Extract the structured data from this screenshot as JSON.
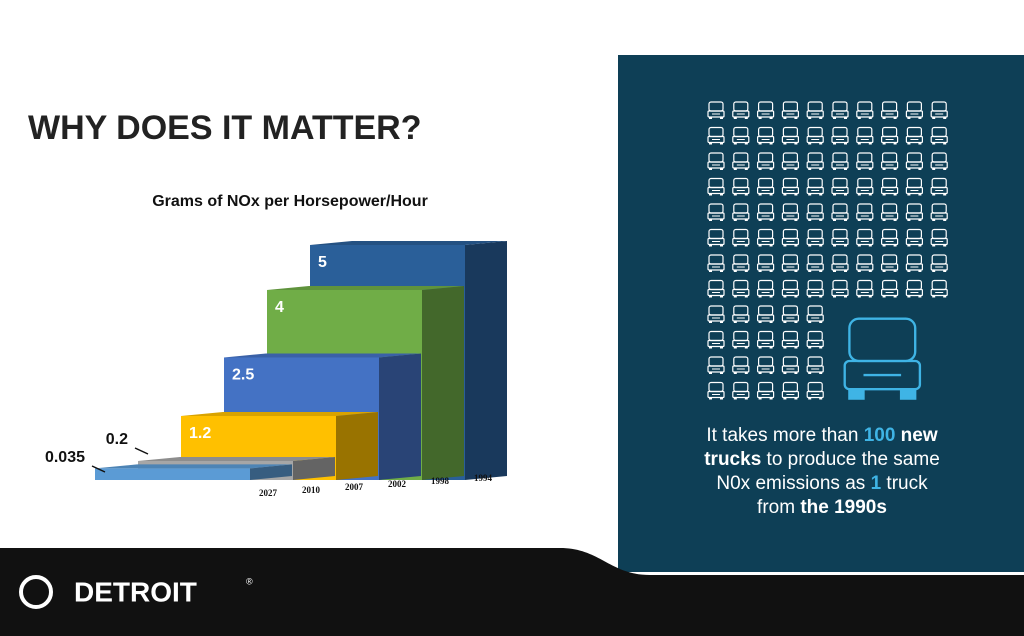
{
  "header": {
    "title": "WHY DOES IT MATTER?"
  },
  "chart_data": {
    "type": "bar3d",
    "title": "Grams of NOx per Horsepower/Hour",
    "categories": [
      "2027",
      "2010",
      "2007",
      "2002",
      "1998",
      "1994"
    ],
    "values": [
      0.035,
      0.2,
      1.2,
      2.5,
      4,
      5
    ],
    "colors": [
      "#5b9bd5",
      "#a6a6a6",
      "#ffc000",
      "#4472c4",
      "#70ad47",
      "#2a5f99"
    ]
  },
  "callout": {
    "runs": [
      "It takes more than ",
      "100",
      " new",
      "trucks",
      " to produce the same",
      "N0x emissions as ",
      "1",
      " truck",
      "from ",
      "the 1990s"
    ]
  },
  "footer": {
    "brand": "DETROIT",
    "mark": "®"
  }
}
